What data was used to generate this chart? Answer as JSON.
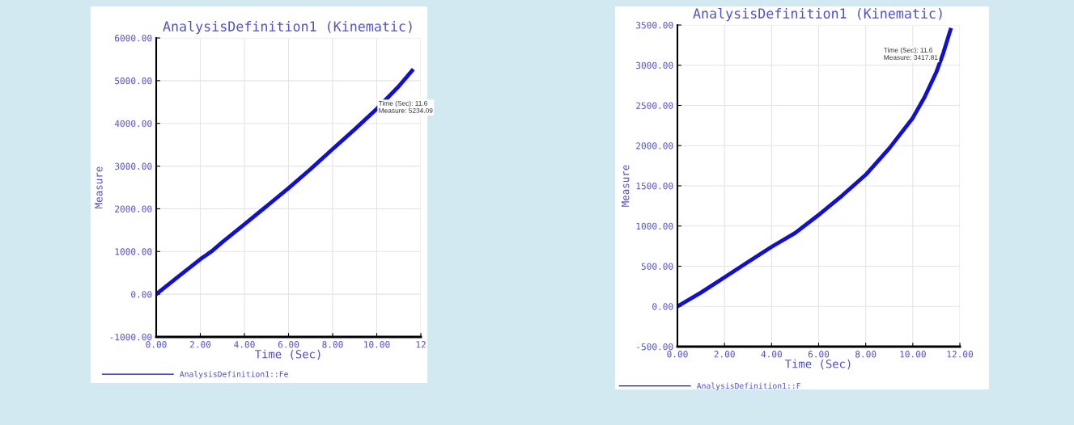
{
  "chart_data": [
    {
      "type": "line",
      "title": "AnalysisDefinition1 (Kinematic)",
      "xlabel": "Time (Sec)",
      "ylabel": "Measure",
      "xlim": [
        0,
        12
      ],
      "xticks": [
        {
          "value": 0,
          "label": "0.00"
        },
        {
          "value": 2,
          "label": "2.00"
        },
        {
          "value": 4,
          "label": "4.00"
        },
        {
          "value": 6,
          "label": "6.00"
        },
        {
          "value": 8,
          "label": "8.00"
        },
        {
          "value": 10,
          "label": "10.00"
        },
        {
          "value": 12,
          "label": "12"
        }
      ],
      "ylim": [
        -1000,
        6000
      ],
      "yticks": [
        {
          "value": -1000,
          "label": "-1000.00"
        },
        {
          "value": 0,
          "label": "0.00"
        },
        {
          "value": 1000,
          "label": "1000.00"
        },
        {
          "value": 2000,
          "label": "2000.00"
        },
        {
          "value": 3000,
          "label": "3000.00"
        },
        {
          "value": 4000,
          "label": "4000.00"
        },
        {
          "value": 5000,
          "label": "5000.00"
        },
        {
          "value": 6000,
          "label": "6000.00"
        }
      ],
      "grid": true,
      "legend": "bottom",
      "series": [
        {
          "name": "AnalysisDefinition1::Fe",
          "color": "#1010d0",
          "x": [
            0,
            1,
            2,
            2.5,
            3,
            4,
            5,
            6,
            7,
            8,
            9,
            10,
            11,
            11.6
          ],
          "values": [
            0,
            410,
            820,
            1000,
            1220,
            1635,
            2060,
            2485,
            2930,
            3400,
            3860,
            4340,
            4870,
            5234
          ]
        }
      ],
      "annotations": [
        "Time (Sec): 11.6\nMeasure: 5234.09"
      ]
    },
    {
      "type": "line",
      "title": "AnalysisDefinition1 (Kinematic)",
      "xlabel": "Time (Sec)",
      "ylabel": "Measure",
      "xlim": [
        0,
        12
      ],
      "xticks": [
        {
          "value": 0,
          "label": "0.00"
        },
        {
          "value": 2,
          "label": "2.00"
        },
        {
          "value": 4,
          "label": "4.00"
        },
        {
          "value": 6,
          "label": "6.00"
        },
        {
          "value": 8,
          "label": "8.00"
        },
        {
          "value": 10,
          "label": "10.00"
        },
        {
          "value": 12,
          "label": "12.00"
        }
      ],
      "ylim": [
        -500,
        3500
      ],
      "yticks": [
        {
          "value": -500,
          "label": "-500.00"
        },
        {
          "value": 0,
          "label": "0.00"
        },
        {
          "value": 500,
          "label": "500.00"
        },
        {
          "value": 1000,
          "label": "1000.00"
        },
        {
          "value": 1500,
          "label": "1500.00"
        },
        {
          "value": 2000,
          "label": "2000.00"
        },
        {
          "value": 2500,
          "label": "2500.00"
        },
        {
          "value": 3000,
          "label": "3000.00"
        },
        {
          "value": 3500,
          "label": "3500.00"
        }
      ],
      "grid": true,
      "legend": "bottom",
      "series": [
        {
          "name": "AnalysisDefinition1::F",
          "color": "#1010d0",
          "x": [
            0,
            1,
            2,
            3,
            4,
            5,
            6,
            7,
            8,
            9,
            10,
            10.5,
            11,
            11.3,
            11.6
          ],
          "values": [
            0,
            172,
            362,
            552,
            741,
            914,
            1138,
            1379,
            1638,
            1966,
            2345,
            2603,
            2914,
            3155,
            3440
          ]
        }
      ],
      "annotations": [
        "Time (Sec): 11.6\nMeasure: 3417.81"
      ]
    }
  ]
}
